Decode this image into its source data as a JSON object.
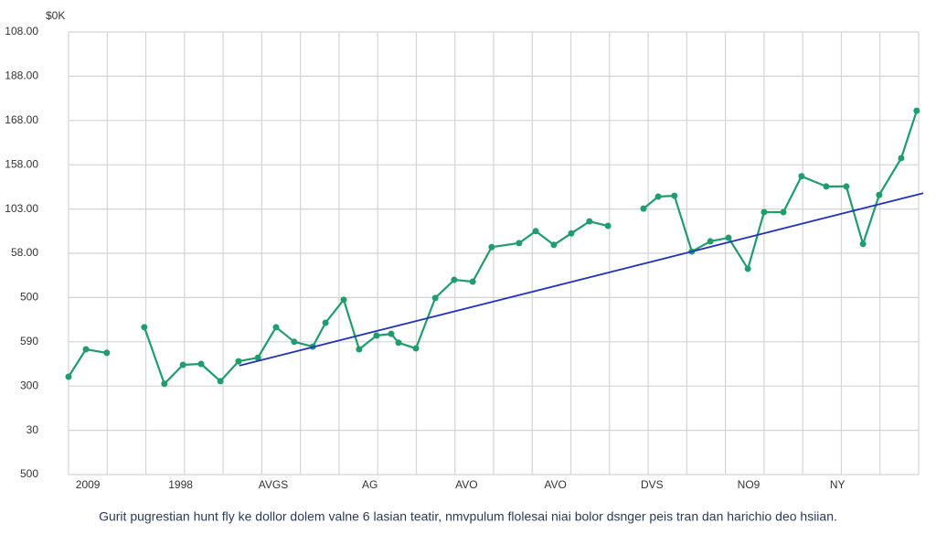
{
  "chart_data": {
    "type": "line",
    "y_unit_label": "$0K",
    "caption": "Gurit pugrestian hunt fly ke dollor dolem valne 6 lasian teatir, nmvpulum flolesai niai bolor dsnger peis tran dan harichio deo hsiian.",
    "xlim": [
      0,
      22
    ],
    "ylim": [
      0,
      10
    ],
    "xgrid": [
      0,
      1,
      2,
      3,
      4,
      5,
      6,
      7,
      8,
      9,
      10,
      11,
      12,
      13,
      14,
      15,
      16,
      17,
      18,
      19,
      20,
      21,
      22
    ],
    "xticks": [
      {
        "value": 0.5,
        "label": "2009"
      },
      {
        "value": 2.9,
        "label": "1998"
      },
      {
        "value": 5.3,
        "label": "AVGS"
      },
      {
        "value": 7.8,
        "label": "AG"
      },
      {
        "value": 10.3,
        "label": "AVO"
      },
      {
        "value": 12.6,
        "label": "AVO"
      },
      {
        "value": 15.1,
        "label": "DVS"
      },
      {
        "value": 17.6,
        "label": "NO9"
      },
      {
        "value": 19.9,
        "label": "NY"
      }
    ],
    "yticks": [
      {
        "value": 0,
        "label": "500"
      },
      {
        "value": 1,
        "label": "30"
      },
      {
        "value": 2,
        "label": "300"
      },
      {
        "value": 3,
        "label": "590"
      },
      {
        "value": 4,
        "label": "500"
      },
      {
        "value": 5,
        "label": "58.00"
      },
      {
        "value": 6,
        "label": "103.00"
      },
      {
        "value": 7,
        "label": "158.00"
      },
      {
        "value": 8,
        "label": "168.00"
      },
      {
        "value": 9,
        "label": "188.00"
      },
      {
        "value": 10,
        "label": "108.00"
      }
    ],
    "grid": true,
    "series": [
      {
        "color": "#1f9d6c",
        "markers": true,
        "x": [
          0,
          0.45,
          0.99,
          null,
          1.96,
          2.48,
          2.96,
          3.43,
          3.93,
          4.4,
          4.9,
          5.37,
          5.84,
          6.32,
          6.65,
          7.12,
          7.52,
          7.97,
          8.35,
          8.54,
          8.99,
          9.49,
          9.98,
          10.46,
          10.95,
          11.66,
          12.09,
          12.56,
          13.01,
          13.48,
          13.96,
          null,
          14.88,
          15.26,
          15.68,
          16.13,
          16.61,
          17.08,
          17.58,
          18.0,
          18.5,
          18.97,
          19.61,
          20.13,
          20.56,
          20.98,
          21.55,
          21.95
        ],
        "values": [
          2.21,
          2.83,
          2.75,
          null,
          3.33,
          2.05,
          2.48,
          2.5,
          2.11,
          2.56,
          2.64,
          3.33,
          3.0,
          2.89,
          3.43,
          3.95,
          2.83,
          3.14,
          3.18,
          2.98,
          2.85,
          3.99,
          4.4,
          4.36,
          5.14,
          5.23,
          5.5,
          5.19,
          5.45,
          5.72,
          5.62,
          null,
          6.01,
          6.28,
          6.3,
          5.04,
          5.27,
          5.35,
          4.65,
          5.93,
          5.93,
          6.74,
          6.51,
          6.51,
          5.21,
          6.32,
          7.15,
          8.22
        ]
      },
      {
        "color": "#2233bb",
        "markers": false,
        "x": [
          4.42,
          22.12
        ],
        "values": [
          2.46,
          6.36
        ]
      }
    ]
  }
}
